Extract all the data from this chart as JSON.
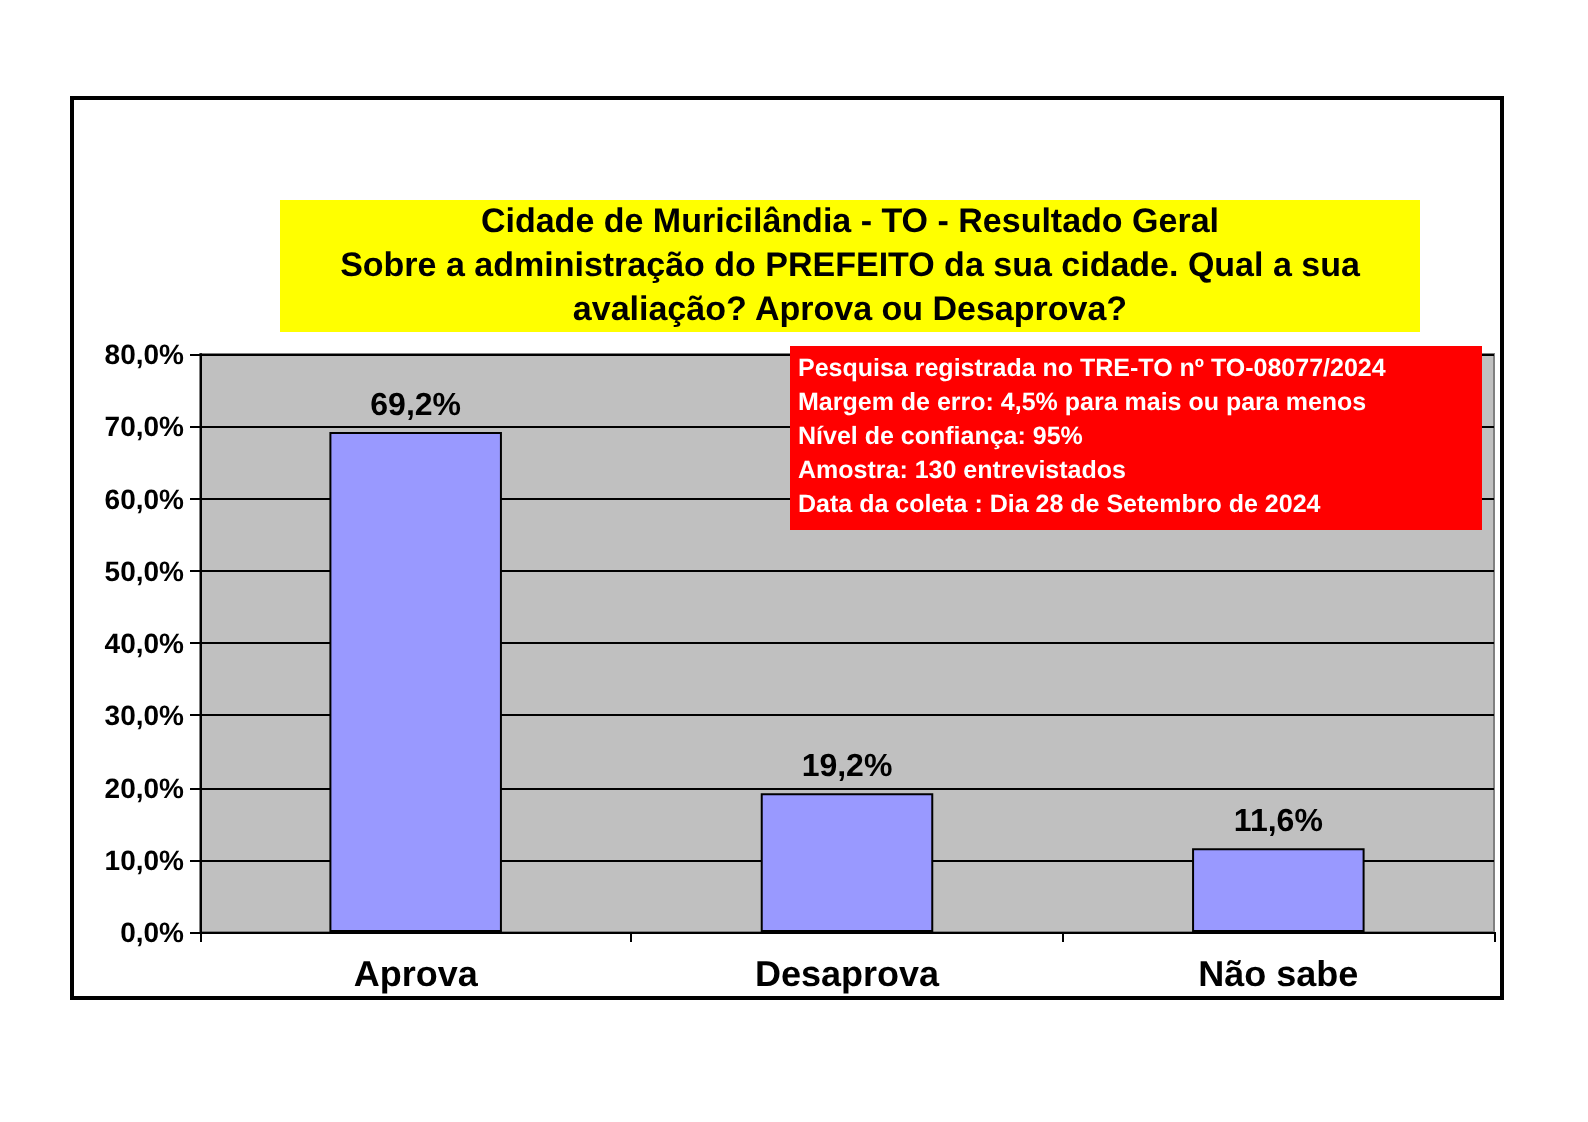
{
  "chart_data": {
    "type": "bar",
    "title": "Cidade de Muricilândia - TO - Resultado Geral",
    "subtitle": "Sobre a administração do PREFEITO da sua cidade. Qual a sua avaliação? Aprova ou Desaprova?",
    "categories": [
      "Aprova",
      "Desaprova",
      "Não sabe"
    ],
    "values": [
      69.2,
      19.2,
      11.6
    ],
    "color": "#9999ff",
    "value_labels": [
      "69,2%",
      "19,2%",
      "11,6%"
    ],
    "ylim": [
      0,
      80
    ],
    "yticks": [
      {
        "value": 0,
        "label": "0,0%"
      },
      {
        "value": 10,
        "label": "10,0%"
      },
      {
        "value": 20,
        "label": "20,0%"
      },
      {
        "value": 30,
        "label": "30,0%"
      },
      {
        "value": 40,
        "label": "40,0%"
      },
      {
        "value": 50,
        "label": "50,0%"
      },
      {
        "value": 60,
        "label": "60,0%"
      },
      {
        "value": 70,
        "label": "70,0%"
      },
      {
        "value": 80,
        "label": "80,0%"
      }
    ],
    "grid": "y",
    "annotations": [
      "Pesquisa registrada no TRE-TO nº TO-08077/2024",
      "Margem de erro: 4,5% para mais ou para menos",
      "Nível de confiança: 95%",
      "Amostra: 130 entrevistados",
      "Data da coleta : Dia 28 de Setembro de 2024"
    ]
  }
}
